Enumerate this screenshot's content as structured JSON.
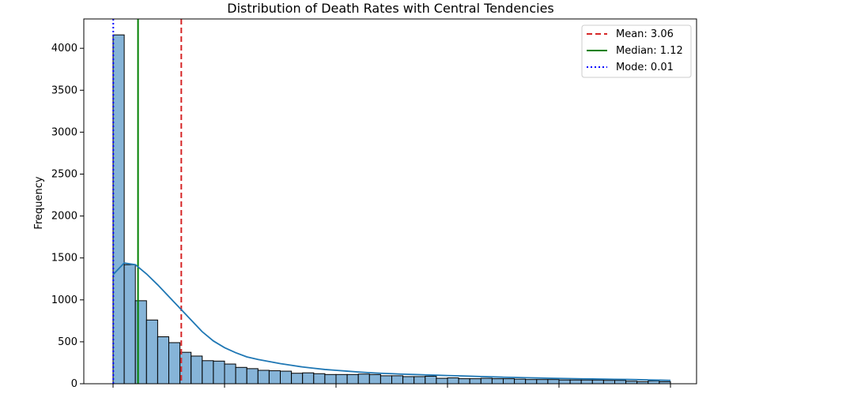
{
  "chart_data": {
    "type": "bar",
    "title": "Distribution of Death Rates with Central Tendencies",
    "xlabel": "",
    "ylabel": "Frequency",
    "ylim": [
      0,
      4350
    ],
    "yticks": [
      0,
      500,
      1000,
      1500,
      2000,
      2500,
      3000,
      3500,
      4000
    ],
    "grid": false,
    "legend_position": "top-right",
    "bars": [
      4160,
      1420,
      990,
      760,
      560,
      490,
      375,
      330,
      275,
      270,
      235,
      195,
      180,
      160,
      155,
      150,
      125,
      130,
      120,
      110,
      110,
      110,
      115,
      110,
      95,
      95,
      85,
      85,
      90,
      65,
      70,
      60,
      60,
      65,
      60,
      60,
      55,
      50,
      50,
      50,
      45,
      45,
      45,
      45,
      40,
      40,
      30,
      25,
      35,
      25
    ],
    "kde": [
      1300,
      1440,
      1420,
      1310,
      1180,
      1040,
      900,
      760,
      620,
      510,
      430,
      370,
      320,
      290,
      265,
      240,
      220,
      200,
      185,
      170,
      160,
      150,
      140,
      132,
      125,
      120,
      114,
      110,
      106,
      102,
      98,
      94,
      90,
      86,
      82,
      78,
      75,
      72,
      69,
      66,
      63,
      61,
      59,
      57,
      55,
      53,
      51,
      49,
      46,
      43,
      40
    ],
    "reference_lines": [
      {
        "label": "Mean: 3.06",
        "value": 3.06,
        "color": "#d62728",
        "style": "dashed"
      },
      {
        "label": "Median: 1.12",
        "value": 1.12,
        "color": "#008000",
        "style": "solid"
      },
      {
        "label": "Mode: 0.01",
        "value": 0.01,
        "color": "#0000ff",
        "style": "dotted"
      }
    ],
    "bar_color": "#86b4d8",
    "kde_color": "#1f77b4"
  }
}
